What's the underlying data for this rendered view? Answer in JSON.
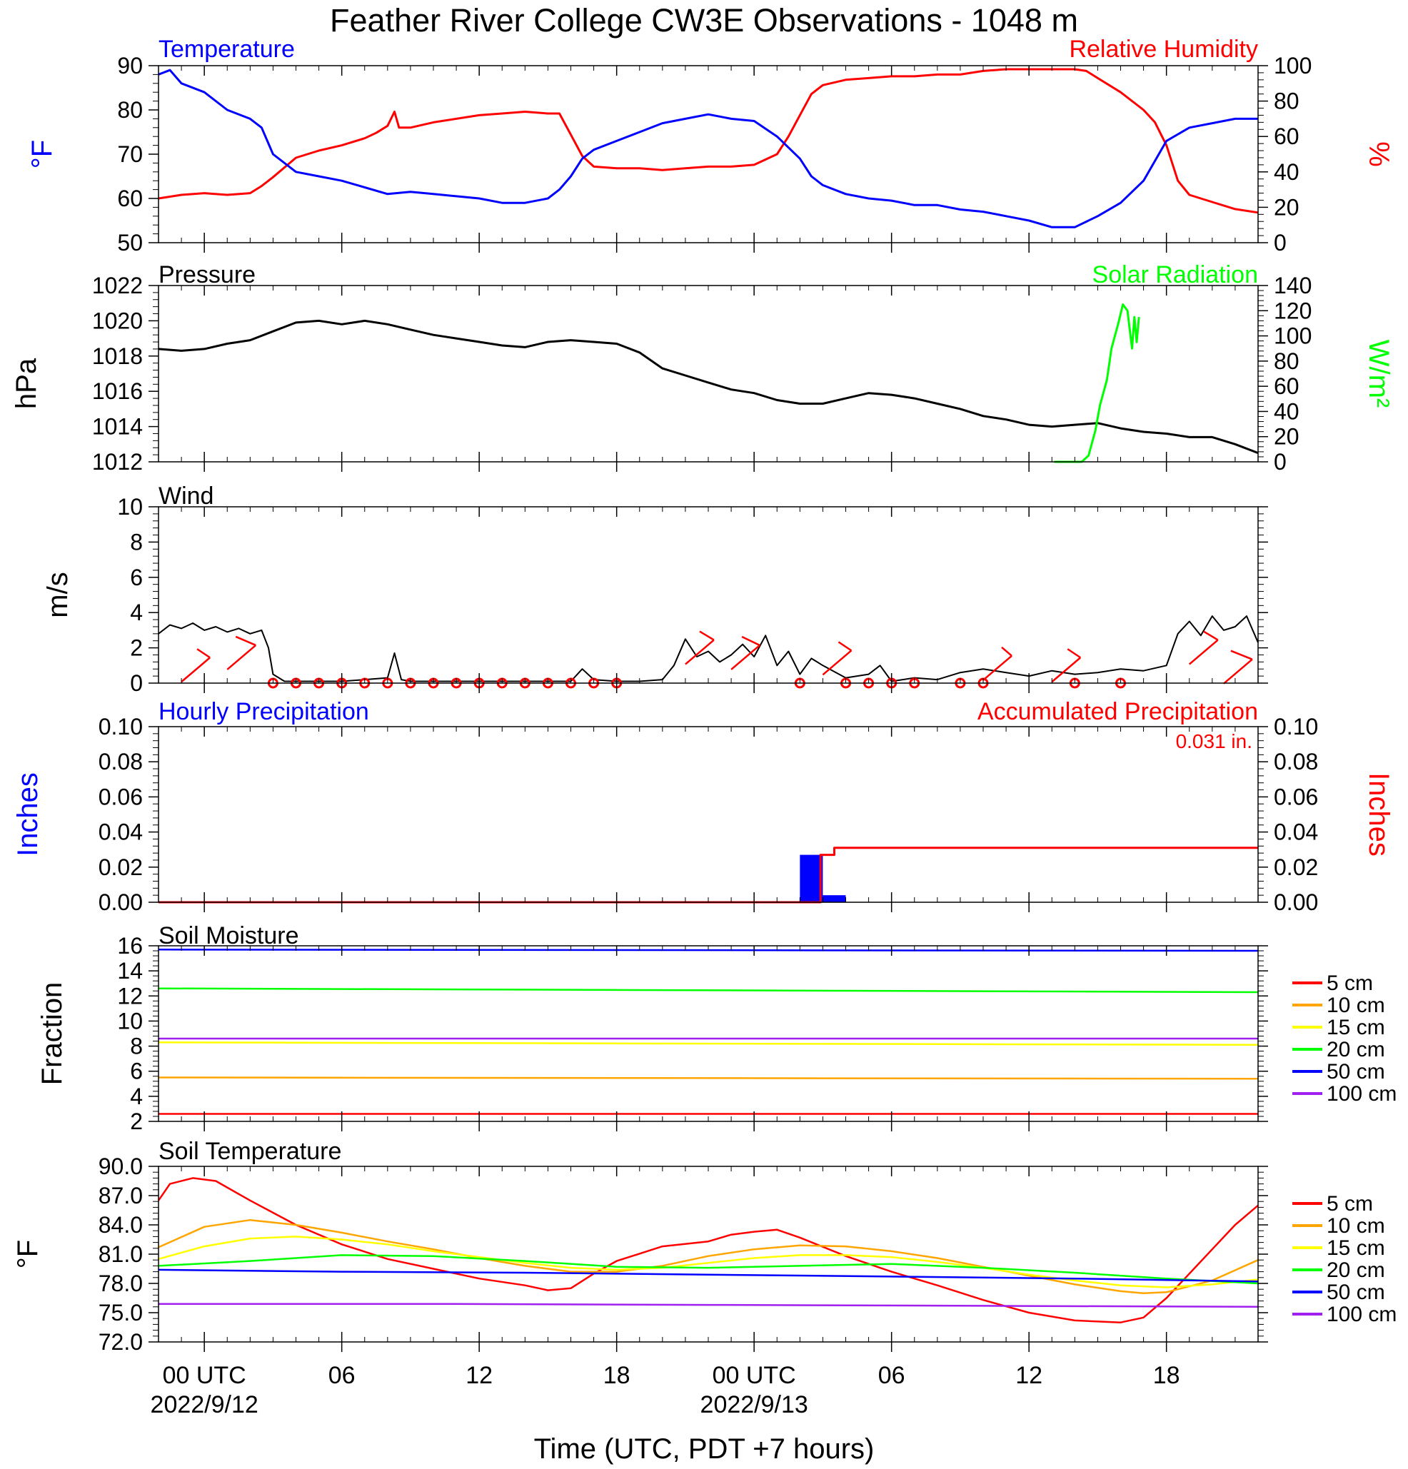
{
  "title": "Feather River College CW3E Observations - 1048 m",
  "xlabel": "Time (UTC, PDT +7 hours)",
  "x_axis": {
    "range_hours": [
      -2,
      46
    ],
    "tick_labels": [
      {
        "hour": 0,
        "label": "00 UTC",
        "sub": "2022/9/12"
      },
      {
        "hour": 6,
        "label": "06"
      },
      {
        "hour": 12,
        "label": "12"
      },
      {
        "hour": 18,
        "label": "18"
      },
      {
        "hour": 24,
        "label": "00 UTC",
        "sub": "2022/9/13"
      },
      {
        "hour": 30,
        "label": "06"
      },
      {
        "hour": 36,
        "label": "12"
      },
      {
        "hour": 42,
        "label": "18"
      }
    ]
  },
  "colors": {
    "temperature": "#0000ff",
    "humidity": "#ff0000",
    "pressure": "#000000",
    "solar": "#00ff00",
    "precip_hourly": "#0000ff",
    "precip_accum": "#ff0000",
    "wind": "#000000",
    "wind_barb": "#ff0000",
    "depth_colors": [
      "#ff0000",
      "#ffa500",
      "#ffff00",
      "#00ff00",
      "#0000ff",
      "#a020f0"
    ]
  },
  "panels": {
    "temp_rh": {
      "left_title": "Temperature",
      "right_title": "Relative Humidity",
      "left_unit": "°F",
      "right_unit": "%",
      "left_ticks": [
        "50",
        "60",
        "70",
        "80",
        "90"
      ],
      "right_ticks": [
        "0",
        "20",
        "40",
        "60",
        "80",
        "100"
      ]
    },
    "pressure": {
      "left_title": "Pressure",
      "right_title": "Solar Radiation",
      "left_unit": "hPa",
      "right_unit": "W/m²",
      "left_ticks": [
        "1012",
        "1014",
        "1016",
        "1018",
        "1020",
        "1022"
      ],
      "right_ticks": [
        "0",
        "20",
        "40",
        "60",
        "80",
        "100",
        "120",
        "140"
      ]
    },
    "wind": {
      "left_title": "Wind",
      "left_unit": "m/s",
      "left_ticks": [
        "0",
        "2",
        "4",
        "6",
        "8",
        "10"
      ]
    },
    "precip": {
      "left_title": "Hourly Precipitation",
      "right_title": "Accumulated Precipitation",
      "total_label": "0.031 in.",
      "left_unit": "Inches",
      "right_unit": "Inches",
      "left_ticks": [
        "0.00",
        "0.02",
        "0.04",
        "0.06",
        "0.08",
        "0.10"
      ],
      "right_ticks": [
        "0.00",
        "0.02",
        "0.04",
        "0.06",
        "0.08",
        "0.10"
      ]
    },
    "soil_moisture": {
      "left_title": "Soil Moisture",
      "left_unit": "Fraction",
      "left_ticks": [
        "2",
        "4",
        "6",
        "8",
        "10",
        "12",
        "14",
        "16"
      ],
      "legend": [
        "5 cm",
        "10 cm",
        "15 cm",
        "20 cm",
        "50 cm",
        "100 cm"
      ]
    },
    "soil_temperature": {
      "left_title": "Soil Temperature",
      "left_unit": "°F",
      "left_ticks": [
        "72.0",
        "75.0",
        "78.0",
        "81.0",
        "84.0",
        "87.0",
        "90.0"
      ],
      "legend": [
        "5 cm",
        "10 cm",
        "15 cm",
        "20 cm",
        "50 cm",
        "100 cm"
      ]
    }
  },
  "chart_data": [
    {
      "type": "line",
      "title": "Temperature / Relative Humidity",
      "x_unit": "hours from 2022/9/12 00 UTC",
      "ylim_left": [
        50,
        90
      ],
      "ylim_right": [
        0,
        100
      ],
      "series": [
        {
          "name": "Temperature",
          "axis": "left",
          "x": [
            -2,
            -1.5,
            -1,
            0,
            1,
            2,
            2.5,
            3,
            4,
            5,
            6,
            7,
            8,
            9,
            10,
            11,
            12,
            13,
            14,
            15,
            15.5,
            16,
            16.5,
            17,
            18,
            19,
            20,
            21,
            22,
            23,
            24,
            25,
            26,
            26.5,
            27,
            28,
            29,
            30,
            31,
            32,
            33,
            34,
            35,
            36,
            37,
            38,
            39,
            40,
            41,
            42,
            43,
            44,
            45,
            46
          ],
          "y": [
            88,
            89,
            86,
            84,
            80,
            78,
            76,
            70,
            66,
            65,
            64,
            62.5,
            61,
            61.5,
            61,
            60.5,
            60,
            59,
            59,
            60,
            62,
            65,
            69,
            71,
            73,
            75,
            77,
            78,
            79,
            78,
            77.5,
            74,
            69,
            65,
            63,
            61,
            60,
            59.5,
            58.5,
            58.5,
            57.5,
            57,
            56,
            55,
            53.5,
            53.5,
            56,
            59,
            64,
            73,
            76,
            77,
            78,
            78
          ]
        },
        {
          "name": "Relative Humidity",
          "axis": "right",
          "x": [
            -2,
            -1,
            0,
            1,
            2,
            2.5,
            3,
            4,
            5,
            6,
            7,
            7.5,
            8,
            8.3,
            8.5,
            9,
            10,
            11,
            12,
            13,
            14,
            15,
            15.5,
            16,
            16.5,
            17,
            18,
            19,
            20,
            21,
            22,
            23,
            24,
            25,
            25.5,
            26,
            26.5,
            27,
            28,
            29,
            30,
            31,
            32,
            33,
            34,
            35,
            36,
            37,
            38,
            38.5,
            39,
            40,
            41,
            41.5,
            42,
            42.5,
            43,
            44,
            45,
            46
          ],
          "y": [
            25,
            27,
            28,
            27,
            28,
            32,
            37,
            48,
            52,
            55,
            59,
            62,
            66,
            74,
            65,
            65,
            68,
            70,
            72,
            73,
            74,
            73,
            73,
            61,
            49,
            43,
            42,
            42,
            41,
            42,
            43,
            43,
            44,
            50,
            60,
            72,
            84,
            89,
            92,
            93,
            94,
            94,
            95,
            95,
            97,
            98,
            98,
            98,
            98,
            97,
            93,
            85,
            75,
            68,
            55,
            35,
            27,
            23,
            19,
            17
          ]
        }
      ]
    },
    {
      "type": "line",
      "title": "Pressure / Solar Radiation",
      "ylim_left": [
        1012,
        1022
      ],
      "ylim_right": [
        0,
        140
      ],
      "series": [
        {
          "name": "Pressure",
          "axis": "left",
          "x": [
            -2,
            -1,
            0,
            1,
            2,
            3,
            4,
            5,
            6,
            7,
            8,
            9,
            10,
            11,
            12,
            13,
            14,
            15,
            16,
            17,
            18,
            19,
            20,
            21,
            22,
            23,
            24,
            25,
            26,
            27,
            28,
            29,
            30,
            31,
            32,
            33,
            34,
            35,
            36,
            37,
            38,
            39,
            40,
            41,
            42,
            43,
            44,
            45,
            46
          ],
          "y": [
            1018.4,
            1018.3,
            1018.4,
            1018.7,
            1018.9,
            1019.4,
            1019.9,
            1020.0,
            1019.8,
            1020.0,
            1019.8,
            1019.5,
            1019.2,
            1019.0,
            1018.8,
            1018.6,
            1018.5,
            1018.8,
            1018.9,
            1018.8,
            1018.7,
            1018.2,
            1017.3,
            1016.9,
            1016.5,
            1016.1,
            1015.9,
            1015.5,
            1015.3,
            1015.3,
            1015.6,
            1015.9,
            1015.8,
            1015.6,
            1015.3,
            1015.0,
            1014.6,
            1014.4,
            1014.1,
            1014.0,
            1014.1,
            1014.2,
            1013.9,
            1013.7,
            1013.6,
            1013.4,
            1013.4,
            1013.0,
            1012.5
          ]
        },
        {
          "name": "Solar Radiation",
          "axis": "right",
          "x": [
            37.1,
            38.3,
            38.6,
            38.9,
            39.1,
            39.4,
            39.6,
            39.9,
            40.1,
            40.3,
            40.5,
            40.6,
            40.7,
            40.8
          ],
          "y": [
            0,
            0,
            5,
            25,
            45,
            65,
            90,
            110,
            125,
            120,
            90,
            115,
            95,
            115
          ]
        }
      ]
    },
    {
      "type": "line",
      "title": "Wind",
      "ylim": [
        0,
        10
      ],
      "series": [
        {
          "name": "Wind",
          "axis": "left",
          "x": [
            -2,
            -1.5,
            -1,
            -0.5,
            0,
            0.5,
            1,
            1.5,
            2,
            2.5,
            2.8,
            3,
            3.5,
            4,
            5,
            6,
            7,
            8,
            8.3,
            8.6,
            9,
            10,
            11,
            12,
            13,
            14,
            15,
            16,
            16.5,
            17,
            18,
            19,
            20,
            20.5,
            21,
            21.5,
            22,
            22.5,
            23,
            23.5,
            24,
            24.5,
            25,
            25.5,
            26,
            26.5,
            27,
            28,
            29,
            29.5,
            30,
            31,
            32,
            33,
            34,
            35,
            36,
            37,
            38,
            39,
            40,
            41,
            42,
            42.5,
            43,
            43.5,
            44,
            44.5,
            45,
            45.5,
            46
          ],
          "y": [
            2.8,
            3.3,
            3.1,
            3.4,
            3.0,
            3.2,
            2.9,
            3.1,
            2.8,
            3.0,
            2.0,
            0.5,
            0.1,
            0.1,
            0.1,
            0.1,
            0.2,
            0.3,
            1.7,
            0.2,
            0.1,
            0.1,
            0.1,
            0.1,
            0.1,
            0.1,
            0.1,
            0.1,
            0.8,
            0.2,
            0.1,
            0.1,
            0.2,
            1.0,
            2.5,
            1.5,
            1.8,
            1.2,
            1.6,
            2.2,
            1.5,
            2.7,
            1.0,
            1.8,
            0.5,
            1.4,
            1.0,
            0.3,
            0.5,
            1.0,
            0.1,
            0.3,
            0.2,
            0.6,
            0.8,
            0.6,
            0.4,
            0.7,
            0.5,
            0.6,
            0.8,
            0.7,
            1.0,
            2.8,
            3.5,
            2.7,
            3.8,
            3.0,
            3.2,
            3.8,
            2.3
          ]
        }
      ]
    },
    {
      "type": "bar",
      "title": "Hourly Precipitation / Accumulated Precipitation",
      "ylim_left": [
        0,
        0.1
      ],
      "ylim_right": [
        0,
        0.1
      ],
      "series": [
        {
          "name": "Hourly Precipitation",
          "axis": "left",
          "bar_hours": [
            26,
            27
          ],
          "values": [
            0.027,
            0.004
          ]
        },
        {
          "name": "Accumulated Precipitation",
          "axis": "right",
          "type": "line",
          "x": [
            -2,
            26.9,
            26.9,
            27.5,
            27.5,
            46
          ],
          "y": [
            0,
            0,
            0.027,
            0.027,
            0.031,
            0.031
          ]
        }
      ]
    },
    {
      "type": "line",
      "title": "Soil Moisture",
      "ylim": [
        2,
        16
      ],
      "x": [
        -2,
        46
      ],
      "series": [
        {
          "name": "5 cm",
          "y": [
            2.6,
            2.6
          ]
        },
        {
          "name": "10 cm",
          "y": [
            5.5,
            5.4
          ]
        },
        {
          "name": "15 cm",
          "y": [
            8.3,
            8.1
          ]
        },
        {
          "name": "20 cm",
          "y": [
            12.6,
            12.3
          ]
        },
        {
          "name": "50 cm",
          "y": [
            15.7,
            15.6
          ]
        },
        {
          "name": "100 cm",
          "y": [
            8.6,
            8.6
          ]
        }
      ]
    },
    {
      "type": "line",
      "title": "Soil Temperature",
      "ylim": [
        72,
        90
      ],
      "series": [
        {
          "name": "5 cm",
          "x": [
            -2,
            -1.5,
            -0.5,
            0.5,
            2,
            4,
            6,
            8,
            10,
            12,
            14,
            15,
            16,
            17,
            18,
            20,
            22,
            23,
            24,
            25,
            26,
            28,
            30,
            32,
            34,
            36,
            38,
            40,
            41,
            42,
            43,
            44,
            45,
            46
          ],
          "y": [
            86.5,
            88.2,
            88.8,
            88.5,
            86.5,
            84.0,
            82.0,
            80.5,
            79.5,
            78.5,
            77.8,
            77.3,
            77.5,
            79.0,
            80.3,
            81.8,
            82.3,
            83.0,
            83.3,
            83.5,
            82.7,
            80.8,
            79.2,
            77.8,
            76.3,
            75.0,
            74.2,
            74.0,
            74.5,
            76.5,
            79.0,
            81.5,
            84.0,
            86.0
          ]
        },
        {
          "name": "10 cm",
          "x": [
            -2,
            0,
            2,
            4,
            6,
            8,
            10,
            12,
            14,
            16,
            18,
            20,
            22,
            24,
            26,
            28,
            30,
            32,
            34,
            36,
            38,
            40,
            41,
            42,
            44,
            46
          ],
          "y": [
            81.7,
            83.8,
            84.5,
            84.0,
            83.2,
            82.3,
            81.5,
            80.6,
            79.8,
            79.2,
            79.2,
            79.8,
            80.8,
            81.5,
            81.9,
            81.8,
            81.3,
            80.6,
            79.7,
            78.8,
            77.9,
            77.2,
            77.0,
            77.1,
            78.3,
            80.4
          ]
        },
        {
          "name": "15 cm",
          "x": [
            -2,
            0,
            2,
            4,
            6,
            8,
            10,
            12,
            14,
            16,
            18,
            20,
            22,
            24,
            26,
            28,
            30,
            32,
            34,
            36,
            38,
            40,
            42,
            44,
            46
          ],
          "y": [
            80.5,
            81.8,
            82.6,
            82.8,
            82.5,
            82.0,
            81.3,
            80.7,
            80.1,
            79.6,
            79.4,
            79.6,
            80.1,
            80.6,
            80.9,
            80.9,
            80.7,
            80.2,
            79.6,
            78.9,
            78.3,
            77.8,
            77.6,
            77.9,
            78.4
          ]
        },
        {
          "name": "20 cm",
          "x": [
            -2,
            2,
            6,
            10,
            14,
            18,
            22,
            26,
            30,
            34,
            38,
            42,
            46
          ],
          "y": [
            79.8,
            80.3,
            80.9,
            80.8,
            80.3,
            79.7,
            79.6,
            79.8,
            80.0,
            79.6,
            79.1,
            78.5,
            78.0
          ]
        },
        {
          "name": "50 cm",
          "x": [
            -2,
            6,
            14,
            22,
            30,
            38,
            46
          ],
          "y": [
            79.4,
            79.2,
            79.1,
            78.9,
            78.7,
            78.5,
            78.2
          ]
        },
        {
          "name": "100 cm",
          "x": [
            -2,
            10,
            22,
            34,
            46
          ],
          "y": [
            75.9,
            75.9,
            75.8,
            75.7,
            75.6
          ]
        }
      ]
    }
  ]
}
